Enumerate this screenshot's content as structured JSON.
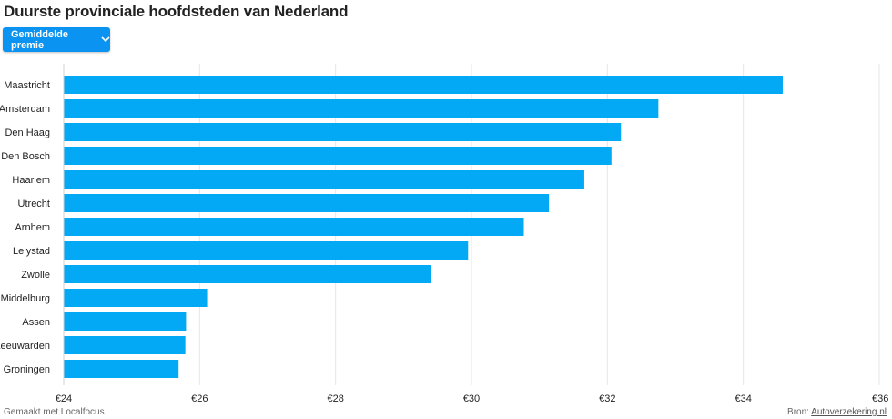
{
  "title": "Duurste provinciale hoofdsteden van Nederland",
  "dropdown": {
    "label": "Gemiddelde premie",
    "icon": "chevron-down-icon"
  },
  "footer": {
    "made_with": "Gemaakt met Localfocus",
    "source_prefix": "Bron:",
    "source_link": "Autoverzekering.nl"
  },
  "colors": {
    "bar": "#03a9f4",
    "button": "#0a93f0",
    "grid": "#e6e6e6"
  },
  "chart_data": {
    "type": "bar",
    "orientation": "horizontal",
    "categories": [
      "Maastricht",
      "Amsterdam",
      "Den Haag",
      "Den Bosch",
      "Haarlem",
      "Utrecht",
      "Arnhem",
      "Lelystad",
      "Zwolle",
      "Middelburg",
      "Assen",
      "Leeuwarden",
      "Groningen"
    ],
    "values": [
      34.58,
      32.75,
      32.2,
      32.06,
      31.66,
      31.14,
      30.77,
      29.95,
      29.41,
      26.11,
      25.8,
      25.79,
      25.69
    ],
    "xlim": [
      24,
      36
    ],
    "xticks": [
      24,
      26,
      28,
      30,
      32,
      34,
      36
    ],
    "xtick_labels": [
      "€24",
      "€26",
      "€28",
      "€30",
      "€32",
      "€34",
      "€36"
    ],
    "grid": true,
    "legend": "none"
  }
}
